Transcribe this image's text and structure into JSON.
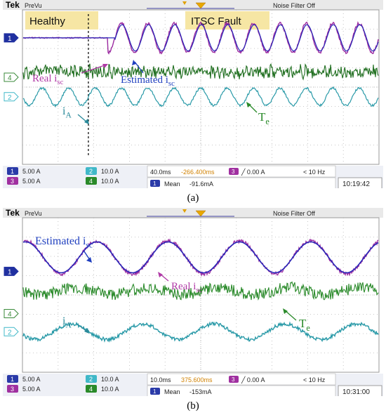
{
  "panels": [
    {
      "id": "a",
      "caption": "(a)",
      "header": {
        "brand": "Tek",
        "mode": "PreVu",
        "filter": "Noise Filter Off"
      },
      "region_labels": [
        "Healthy",
        "ITSC Fault"
      ],
      "annotations": [
        {
          "text": "Real i",
          "sub": "sc",
          "color": "#b03aa6"
        },
        {
          "text": "Estimated i",
          "sub": "sc",
          "color": "#1f3fbf"
        },
        {
          "text": "T",
          "sub": "e",
          "color": "#2a8a2a"
        },
        {
          "text": "i",
          "sub": "A",
          "color": "#2a8a9a"
        }
      ],
      "channel_markers": [
        "1",
        "4",
        "2"
      ],
      "status": {
        "ch1": "5.00 A",
        "ch2": "10.0 A",
        "ch3": "5.00 A",
        "ch4": "10.0 A",
        "timebase": "40.0ms",
        "position": "-266.400ms",
        "trigger": "0.00 A",
        "trigger_freq": "< 10 Hz",
        "meas_label": "Mean",
        "meas_value": "-91.6mA",
        "clock": "10:19:42"
      }
    },
    {
      "id": "b",
      "caption": "(b)",
      "header": {
        "brand": "Tek",
        "mode": "PreVu",
        "filter": "Noise Filter Off"
      },
      "region_labels": [],
      "annotations": [
        {
          "text": "Estimated i",
          "sub": "sc",
          "color": "#1f3fbf"
        },
        {
          "text": "Real i",
          "sub": "sc",
          "color": "#b03aa6"
        },
        {
          "text": "T",
          "sub": "e",
          "color": "#2a8a2a"
        },
        {
          "text": "i",
          "sub": "A",
          "color": "#2a8a9a"
        }
      ],
      "channel_markers": [
        "1",
        "4",
        "2"
      ],
      "status": {
        "ch1": "5.00 A",
        "ch2": "10.0 A",
        "ch3": "5.00 A",
        "ch4": "10.0 A",
        "timebase": "10.0ms",
        "position": "375.600ms",
        "trigger": "0.00 A",
        "trigger_freq": "< 10 Hz",
        "meas_label": "Mean",
        "meas_value": "-153mA",
        "clock": "10:31:00"
      }
    }
  ],
  "chart_data": [
    {
      "type": "line",
      "panel": "a",
      "x_divisions": 10,
      "y_divisions": 8,
      "fault_onset_division": 2.4,
      "series": [
        {
          "name": "Real i_sc",
          "color": "#9b2aa0",
          "healthy_amplitude_div": 0.0,
          "fault_amplitude_div": 0.75,
          "cycles_per_division": 1.35
        },
        {
          "name": "Estimated i_sc",
          "color": "#2a2ab8",
          "healthy_amplitude_div": 0.0,
          "fault_amplitude_div": 0.68,
          "cycles_per_division": 1.35
        },
        {
          "name": "T_e",
          "color": "#1f6e1f",
          "amplitude_div": 0.3,
          "ripple": "high"
        },
        {
          "name": "i_A",
          "color": "#2a9aa8",
          "amplitude_div": 0.45,
          "cycles_per_division": 1.35
        }
      ]
    },
    {
      "type": "line",
      "panel": "b",
      "x_divisions": 10,
      "y_divisions": 8,
      "series": [
        {
          "name": "Real i_sc",
          "color": "#9b2aa0",
          "amplitude_div": 0.85,
          "cycles_per_division": 0.5
        },
        {
          "name": "Estimated i_sc",
          "color": "#2a2ab8",
          "amplitude_div": 0.8,
          "cycles_per_division": 0.5
        },
        {
          "name": "T_e",
          "color": "#2a8a2a",
          "amplitude_div": 0.3,
          "ripple": "medium"
        },
        {
          "name": "i_A",
          "color": "#2a9aa8",
          "amplitude_div": 0.4,
          "cycles_per_division": 0.5
        }
      ]
    }
  ]
}
